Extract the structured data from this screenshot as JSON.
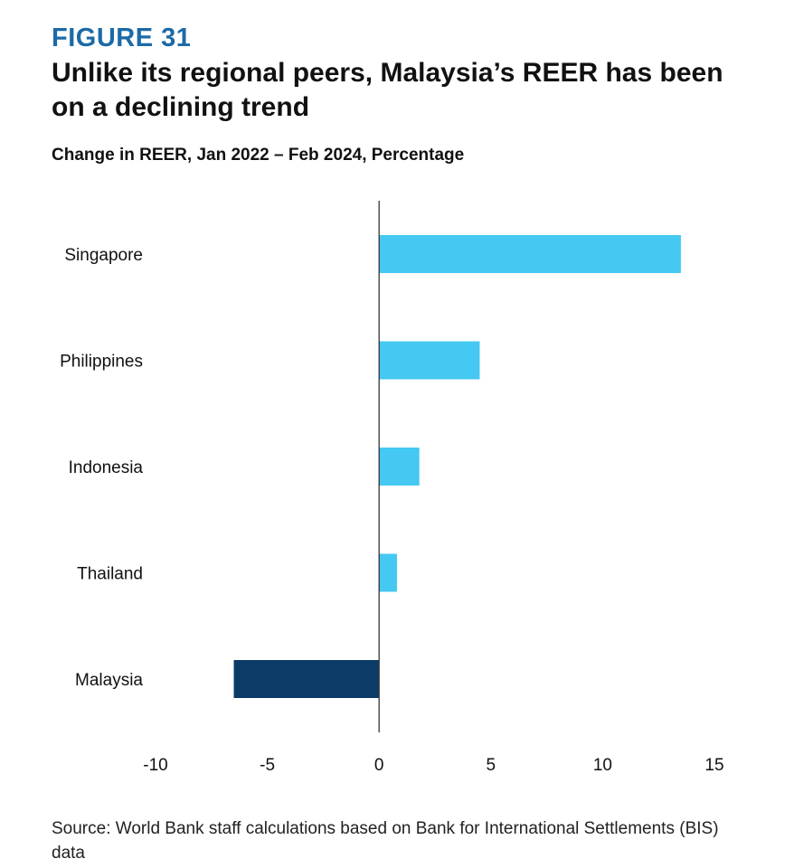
{
  "figure_label": "FIGURE 31",
  "title": "Unlike its regional peers, Malaysia’s REER has been on a declining trend",
  "subtitle": "Change in REER, Jan 2022 – Feb 2024, Percentage",
  "source": "Source: World Bank staff calculations based on Bank for International Settlements (BIS) data",
  "colors": {
    "positive_bar": "#45c8f2",
    "highlight_bar": "#0b3c68",
    "axis": "#333333"
  },
  "chart_data": {
    "type": "bar",
    "orientation": "horizontal",
    "title": "Unlike its regional peers, Malaysia’s REER has been on a declining trend",
    "subtitle": "Change in REER, Jan 2022 – Feb 2024, Percentage",
    "xlabel": "",
    "ylabel": "",
    "categories": [
      "Singapore",
      "Philippines",
      "Indonesia",
      "Thailand",
      "Malaysia"
    ],
    "values": [
      13.5,
      4.5,
      1.8,
      0.8,
      -6.5
    ],
    "highlight": [
      "Malaysia"
    ],
    "xlim": [
      -10,
      15
    ],
    "xticks": [
      -10,
      -5,
      0,
      5,
      10,
      15
    ],
    "grid": false,
    "legend": "none"
  }
}
